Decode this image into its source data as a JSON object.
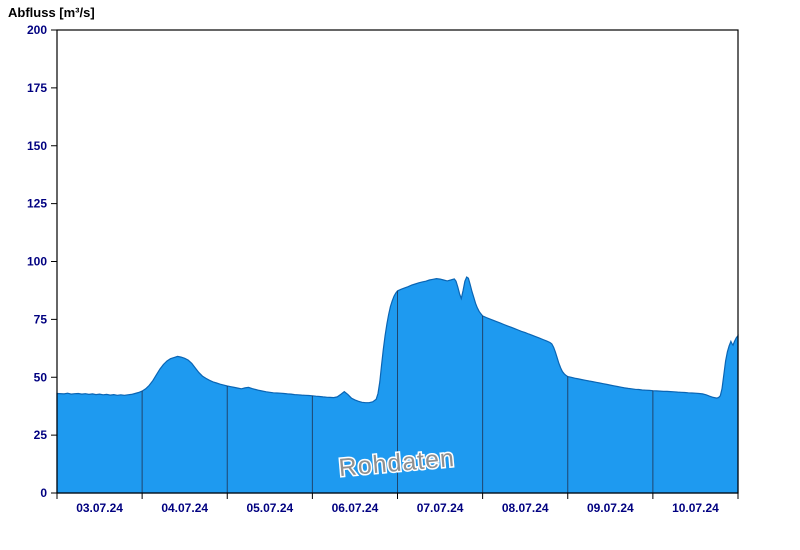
{
  "title": "Abfluss [m³/s]",
  "watermark": {
    "text": "Rohdaten",
    "color": "#909090",
    "rotation_deg": -5
  },
  "colors": {
    "area_fill": "#1e9af0",
    "area_stroke": "#0a65b4",
    "gridline": "#1f2a44",
    "axis": "#000000",
    "tick_label": "#000080",
    "background": "#ffffff"
  },
  "axes": {
    "y": {
      "min": 0,
      "max": 200,
      "tick_step": 25,
      "tick_labels": [
        "0",
        "25",
        "50",
        "75",
        "100",
        "125",
        "150",
        "175",
        "200"
      ]
    },
    "x": {
      "day_labels": [
        "03.07.24",
        "04.07.24",
        "05.07.24",
        "06.07.24",
        "07.07.24",
        "08.07.24",
        "09.07.24",
        "10.07.24"
      ],
      "hours_per_day": 24
    }
  },
  "chart_data": {
    "type": "area",
    "title": "Abfluss [m³/s]",
    "ylabel": "Abfluss [m³/s]",
    "xlabel": "",
    "ylim": [
      0,
      200
    ],
    "y_tick_step": 25,
    "x_range_hours": [
      0,
      192
    ],
    "x_unit": "hours since 03.07.24 00:00",
    "x_tick_labels": [
      "03.07.24",
      "04.07.24",
      "05.07.24",
      "06.07.24",
      "07.07.24",
      "08.07.24",
      "09.07.24",
      "10.07.24"
    ],
    "grid": "vertical-day-boundaries-inside-area",
    "legend": "none",
    "annotations": [
      "Rohdaten"
    ],
    "series": [
      {
        "name": "Rohdaten",
        "unit": "m³/s",
        "points": [
          [
            0,
            43
          ],
          [
            2,
            42.8
          ],
          [
            3,
            43.1
          ],
          [
            4,
            42.7
          ],
          [
            5,
            42.9
          ],
          [
            6,
            43
          ],
          [
            7,
            42.7
          ],
          [
            8,
            42.9
          ],
          [
            9,
            42.6
          ],
          [
            10,
            42.8
          ],
          [
            11,
            42.5
          ],
          [
            12,
            42.7
          ],
          [
            13,
            42.4
          ],
          [
            14,
            42.6
          ],
          [
            15,
            42.3
          ],
          [
            16,
            42.5
          ],
          [
            17,
            42.2
          ],
          [
            18,
            42.4
          ],
          [
            19,
            42.2
          ],
          [
            20,
            42.4
          ],
          [
            21,
            42.6
          ],
          [
            22,
            43
          ],
          [
            23,
            43.4
          ],
          [
            24,
            44
          ],
          [
            25,
            45
          ],
          [
            26,
            46.5
          ],
          [
            27,
            48.5
          ],
          [
            28,
            51
          ],
          [
            29,
            53.5
          ],
          [
            30,
            55.5
          ],
          [
            31,
            57
          ],
          [
            32,
            58
          ],
          [
            33,
            58.5
          ],
          [
            34,
            59
          ],
          [
            35,
            58.7
          ],
          [
            36,
            58.2
          ],
          [
            37,
            57.4
          ],
          [
            38,
            56
          ],
          [
            39,
            54
          ],
          [
            40,
            52
          ],
          [
            41,
            50.5
          ],
          [
            42,
            49.5
          ],
          [
            43,
            48.7
          ],
          [
            44,
            48
          ],
          [
            45,
            47.5
          ],
          [
            46,
            47
          ],
          [
            47,
            46.6
          ],
          [
            48,
            46.2
          ],
          [
            49,
            45.9
          ],
          [
            50,
            45.6
          ],
          [
            51,
            45.3
          ],
          [
            52,
            45
          ],
          [
            53,
            45.4
          ],
          [
            54,
            45.6
          ],
          [
            55,
            45.1
          ],
          [
            56,
            44.7
          ],
          [
            57,
            44.3
          ],
          [
            58,
            44
          ],
          [
            59,
            43.7
          ],
          [
            60,
            43.5
          ],
          [
            61,
            43.3
          ],
          [
            62,
            43.2
          ],
          [
            63,
            43.1
          ],
          [
            64,
            43
          ],
          [
            65,
            42.8
          ],
          [
            66,
            42.7
          ],
          [
            67,
            42.5
          ],
          [
            68,
            42.4
          ],
          [
            69,
            42.3
          ],
          [
            70,
            42.2
          ],
          [
            71,
            42.1
          ],
          [
            72,
            42
          ],
          [
            73,
            41.8
          ],
          [
            74,
            41.7
          ],
          [
            75,
            41.5
          ],
          [
            76,
            41.4
          ],
          [
            77,
            41.3
          ],
          [
            78,
            41.2
          ],
          [
            79,
            41.5
          ],
          [
            80,
            42.6
          ],
          [
            81,
            43.8
          ],
          [
            82,
            42.6
          ],
          [
            83,
            41
          ],
          [
            84,
            40.2
          ],
          [
            85,
            39.6
          ],
          [
            86,
            39.2
          ],
          [
            87,
            39
          ],
          [
            88,
            39
          ],
          [
            89,
            39.4
          ],
          [
            90,
            40.5
          ],
          [
            90.5,
            43
          ],
          [
            91,
            48
          ],
          [
            91.5,
            55
          ],
          [
            92,
            62
          ],
          [
            92.5,
            68
          ],
          [
            93,
            73
          ],
          [
            93.5,
            77
          ],
          [
            94,
            80.5
          ],
          [
            94.5,
            83
          ],
          [
            95,
            85
          ],
          [
            95.5,
            86.3
          ],
          [
            96,
            87.3
          ],
          [
            97,
            88
          ],
          [
            98,
            88.6
          ],
          [
            99,
            89.1
          ],
          [
            100,
            89.8
          ],
          [
            101,
            90.3
          ],
          [
            102,
            90.8
          ],
          [
            103,
            91.2
          ],
          [
            104,
            91.5
          ],
          [
            105,
            92
          ],
          [
            106,
            92.3
          ],
          [
            107,
            92.6
          ],
          [
            108,
            92.4
          ],
          [
            109,
            92
          ],
          [
            110,
            91.6
          ],
          [
            111,
            92
          ],
          [
            112,
            92.5
          ],
          [
            112.5,
            91.5
          ],
          [
            113,
            89
          ],
          [
            113.5,
            86
          ],
          [
            114,
            84
          ],
          [
            114.5,
            87.5
          ],
          [
            115,
            91.5
          ],
          [
            115.5,
            93.3
          ],
          [
            116,
            92.8
          ],
          [
            116.5,
            90
          ],
          [
            117,
            87
          ],
          [
            117.5,
            84.5
          ],
          [
            118,
            82
          ],
          [
            118.5,
            80
          ],
          [
            119,
            78.5
          ],
          [
            119.5,
            77.4
          ],
          [
            120,
            76.5
          ],
          [
            121,
            75.8
          ],
          [
            122,
            75.2
          ],
          [
            123,
            74.6
          ],
          [
            124,
            74
          ],
          [
            125,
            73.4
          ],
          [
            126,
            72.8
          ],
          [
            127,
            72.2
          ],
          [
            128,
            71.6
          ],
          [
            129,
            71
          ],
          [
            130,
            70.4
          ],
          [
            131,
            69.8
          ],
          [
            132,
            69.3
          ],
          [
            133,
            68.7
          ],
          [
            134,
            68.1
          ],
          [
            135,
            67.5
          ],
          [
            136,
            66.9
          ],
          [
            137,
            66.3
          ],
          [
            138,
            65.7
          ],
          [
            139,
            65
          ],
          [
            139.5,
            64.4
          ],
          [
            140,
            63
          ],
          [
            140.5,
            61
          ],
          [
            141,
            58.5
          ],
          [
            141.5,
            56
          ],
          [
            142,
            54
          ],
          [
            142.5,
            52.5
          ],
          [
            143,
            51.5
          ],
          [
            143.5,
            50.8
          ],
          [
            144,
            50.3
          ],
          [
            145,
            50
          ],
          [
            146,
            49.6
          ],
          [
            147,
            49.3
          ],
          [
            148,
            49
          ],
          [
            149,
            48.7
          ],
          [
            150,
            48.4
          ],
          [
            151,
            48.1
          ],
          [
            152,
            47.8
          ],
          [
            153,
            47.5
          ],
          [
            154,
            47.2
          ],
          [
            155,
            46.9
          ],
          [
            156,
            46.6
          ],
          [
            157,
            46.3
          ],
          [
            158,
            46
          ],
          [
            159,
            45.7
          ],
          [
            160,
            45.4
          ],
          [
            161,
            45.2
          ],
          [
            162,
            45
          ],
          [
            163,
            44.8
          ],
          [
            164,
            44.7
          ],
          [
            165,
            44.5
          ],
          [
            166,
            44.4
          ],
          [
            167,
            44.3
          ],
          [
            168,
            44.2
          ],
          [
            169,
            44.1
          ],
          [
            170,
            44
          ],
          [
            171,
            43.9
          ],
          [
            172,
            43.9
          ],
          [
            173,
            43.8
          ],
          [
            174,
            43.7
          ],
          [
            175,
            43.6
          ],
          [
            176,
            43.5
          ],
          [
            177,
            43.4
          ],
          [
            178,
            43.3
          ],
          [
            179,
            43.2
          ],
          [
            180,
            43.1
          ],
          [
            181,
            43
          ],
          [
            182,
            42.8
          ],
          [
            183,
            42.4
          ],
          [
            184,
            41.8
          ],
          [
            185,
            41.3
          ],
          [
            186,
            41
          ],
          [
            186.5,
            41.2
          ],
          [
            187,
            42
          ],
          [
            187.5,
            45
          ],
          [
            188,
            51
          ],
          [
            188.5,
            57
          ],
          [
            189,
            61
          ],
          [
            189.5,
            63.5
          ],
          [
            190,
            65.5
          ],
          [
            190.3,
            64.5
          ],
          [
            190.6,
            63.9
          ],
          [
            191,
            65.5
          ],
          [
            191.5,
            67
          ],
          [
            192,
            68
          ]
        ]
      }
    ]
  }
}
